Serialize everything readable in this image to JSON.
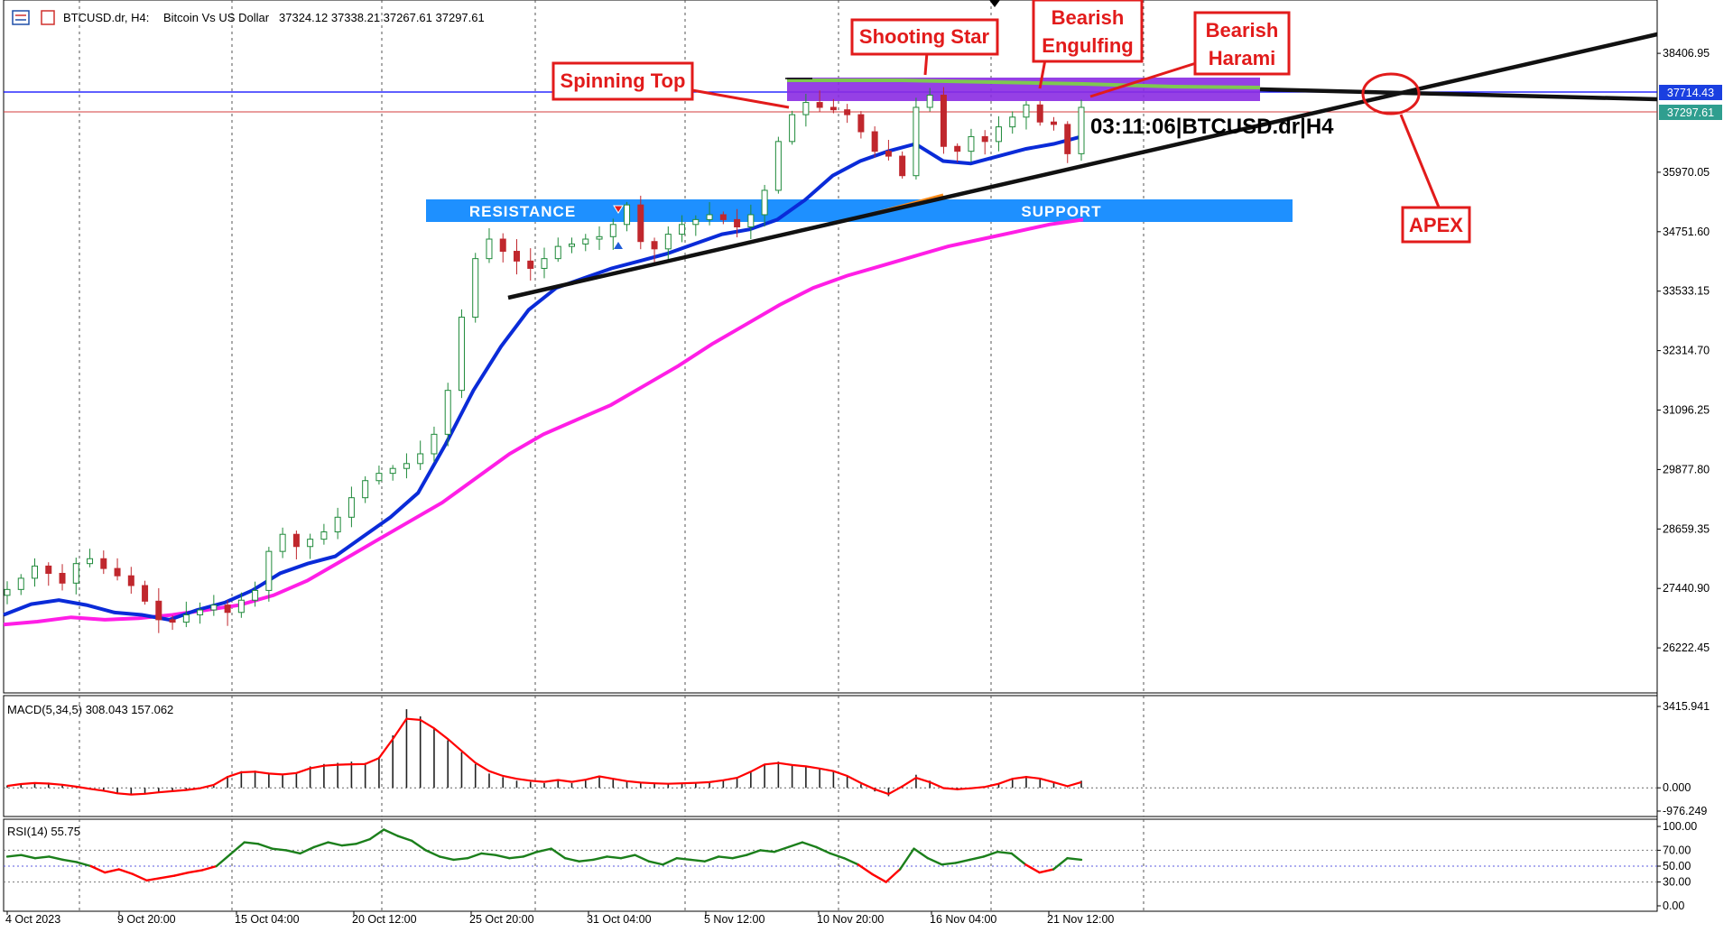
{
  "header": {
    "symbol": "BTCUSD.dr, H4:",
    "description": "Bitcoin Vs US Dollar",
    "ohlc": "37324.12 37338.21 37267.61 37297.61",
    "icon": "chart-window-icon"
  },
  "countdown_label": "03:11:06|BTCUSD.dr|H4",
  "annotations": {
    "spinning_top": "Spinning Top",
    "shooting_star": "Shooting Star",
    "bearish_engulfing_1": "Bearish",
    "bearish_engulfing_2": "Engulfing",
    "bearish_harami_1": "Bearish",
    "bearish_harami_2": "Harami",
    "apex": "APEX"
  },
  "zones": {
    "resistance": "RESISTANCE",
    "support": "SUPPORT"
  },
  "macd_label": "MACD(5,34,5) 308.043 157.062",
  "rsi_label": "RSI(14) 55.75",
  "price_badges": {
    "blue_line": "37714.43",
    "current": "37297.61"
  },
  "colors": {
    "bull_candle": "#1f8a3a",
    "bear_candle": "#c0272d",
    "ema_fast": "#0a2bd8",
    "ema_slow": "#ff1ee6",
    "annotation": "#e21b1b",
    "zone": "#1e90ff",
    "purple_zone": "#8a2be2",
    "green_line": "#7ec850",
    "current_price_line": "#d33d3d",
    "blue_h_line": "#0000ff",
    "macd_signal": "#ff0000",
    "rsi_up": "#1b7f1b",
    "rsi_down": "#ff0000"
  },
  "chart_data": {
    "type": "candlestick",
    "symbol": "BTCUSD.dr",
    "timeframe": "H4",
    "x_tick_labels": [
      "4 Oct 2023",
      "9 Oct 20:00",
      "15 Oct 04:00",
      "20 Oct 12:00",
      "25 Oct 20:00",
      "31 Oct 04:00",
      "5 Nov 12:00",
      "10 Nov 20:00",
      "16 Nov 04:00",
      "21 Nov 12:00"
    ],
    "y_tick_labels": [
      "38406.95",
      "35970.05",
      "34751.60",
      "33533.15",
      "32314.70",
      "31096.25",
      "29877.80",
      "28659.35",
      "27440.90",
      "26222.45"
    ],
    "ylim": [
      25300,
      39500
    ],
    "ohlc": {
      "open": 37324.12,
      "high": 37338.21,
      "low": 37267.61,
      "close": 37297.61
    },
    "levels": {
      "blue_horizontal": 37714.43,
      "current_price": 37297.61,
      "resistance_support_zone": [
        34850,
        35280
      ],
      "purple_zone": [
        37510,
        37950
      ]
    },
    "close_series": [
      27420,
      27650,
      27900,
      27750,
      27550,
      27950,
      28050,
      27850,
      27700,
      27500,
      27180,
      26800,
      26750,
      26900,
      27000,
      27100,
      26950,
      27200,
      27400,
      28200,
      28550,
      28300,
      28450,
      28600,
      28900,
      29300,
      29650,
      29800,
      29900,
      30000,
      30200,
      30600,
      31500,
      33000,
      34200,
      34600,
      34350,
      34150,
      34000,
      34200,
      34450,
      34500,
      34600,
      34650,
      34900,
      35300,
      34550,
      34400,
      34700,
      34900,
      35000,
      35100,
      35000,
      34850,
      35100,
      35600,
      36600,
      37150,
      37400,
      37300,
      37250,
      37150,
      36800,
      36400,
      36300,
      35900,
      37300,
      37550,
      36500,
      36400,
      36700,
      36600,
      36900,
      37100,
      37350,
      37000,
      36950,
      36350,
      37300
    ],
    "ema_fast": {
      "name": "",
      "values": [
        26900,
        27120,
        27200,
        27100,
        26950,
        26900,
        26800,
        27000,
        27150,
        27400,
        27750,
        27950,
        28100,
        28500,
        28900,
        29400,
        30400,
        31500,
        32400,
        33150,
        33600,
        33800,
        34000,
        34150,
        34300,
        34500,
        34700,
        34800,
        35000,
        35400,
        35900,
        36200,
        36400,
        36550,
        36200,
        36150,
        36300,
        36450,
        36550,
        36700
      ]
    },
    "ema_slow": {
      "name": "",
      "values": [
        26700,
        26760,
        26850,
        26800,
        26830,
        26900,
        27000,
        27100,
        27300,
        27600,
        28000,
        28400,
        28800,
        29200,
        29700,
        30200,
        30600,
        30900,
        31200,
        31600,
        32000,
        32450,
        32850,
        33250,
        33600,
        33850,
        34050,
        34250,
        34450,
        34600,
        34750,
        34900,
        35000
      ]
    },
    "macd": {
      "label": "MACD(5,34,5) 308.043 157.062",
      "y_tick_labels": [
        "3415.941",
        "0.000",
        "-976.249"
      ],
      "ylim": [
        -976.249,
        3415.941
      ],
      "histogram": [
        100,
        180,
        200,
        220,
        150,
        60,
        -50,
        -120,
        -200,
        -260,
        -230,
        -180,
        -150,
        -100,
        -40,
        80,
        500,
        700,
        720,
        600,
        520,
        600,
        900,
        1000,
        1050,
        1100,
        1050,
        1300,
        2200,
        3300,
        3000,
        2500,
        2000,
        1500,
        1000,
        600,
        450,
        300,
        250,
        200,
        300,
        200,
        350,
        500,
        350,
        250,
        200,
        180,
        150,
        180,
        200,
        220,
        300,
        400,
        650,
        1000,
        1100,
        950,
        900,
        800,
        700,
        500,
        150,
        -150,
        -350,
        100,
        550,
        300,
        -50,
        -100,
        -40,
        50,
        180,
        400,
        500,
        400,
        200,
        20,
        300
      ],
      "signal": [
        80,
        160,
        200,
        180,
        130,
        50,
        -40,
        -120,
        -230,
        -280,
        -250,
        -190,
        -140,
        -90,
        -20,
        120,
        460,
        650,
        680,
        600,
        560,
        620,
        820,
        930,
        970,
        990,
        1000,
        1250,
        2050,
        2900,
        2850,
        2500,
        2050,
        1550,
        1050,
        700,
        500,
        380,
        300,
        250,
        330,
        250,
        340,
        480,
        380,
        280,
        220,
        190,
        170,
        190,
        210,
        240,
        320,
        420,
        680,
        980,
        1040,
        960,
        900,
        810,
        700,
        500,
        200,
        -60,
        -260,
        60,
        420,
        240,
        -10,
        -60,
        -20,
        40,
        170,
        380,
        460,
        390,
        230,
        70,
        240
      ]
    },
    "rsi": {
      "label": "RSI(14) 55.75",
      "y_tick_labels": [
        "100.00",
        "70.00",
        "50.00",
        "30.00",
        "0.00"
      ],
      "ylim": [
        0,
        100
      ],
      "levels": [
        70,
        50,
        30
      ],
      "values": [
        62,
        64,
        60,
        62,
        58,
        55,
        50,
        42,
        46,
        40,
        32,
        35,
        38,
        42,
        45,
        50,
        65,
        80,
        78,
        72,
        70,
        66,
        74,
        80,
        76,
        78,
        84,
        96,
        88,
        82,
        70,
        62,
        58,
        60,
        66,
        64,
        60,
        62,
        68,
        72,
        60,
        56,
        58,
        62,
        60,
        64,
        56,
        52,
        60,
        58,
        56,
        62,
        60,
        64,
        70,
        68,
        74,
        80,
        74,
        66,
        60,
        52,
        40,
        30,
        46,
        72,
        60,
        52,
        54,
        58,
        62,
        68,
        66,
        52,
        42,
        46,
        60,
        58
      ]
    }
  }
}
